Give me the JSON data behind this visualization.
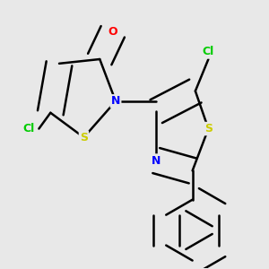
{
  "background_color": "#e8e8e8",
  "bond_color": "#000000",
  "atom_colors": {
    "O": "#ff0000",
    "N": "#0000ff",
    "S": "#cccc00",
    "Cl": "#00cc00",
    "C": "#000000"
  },
  "figsize": [
    3.0,
    3.0
  ],
  "dpi": 100
}
